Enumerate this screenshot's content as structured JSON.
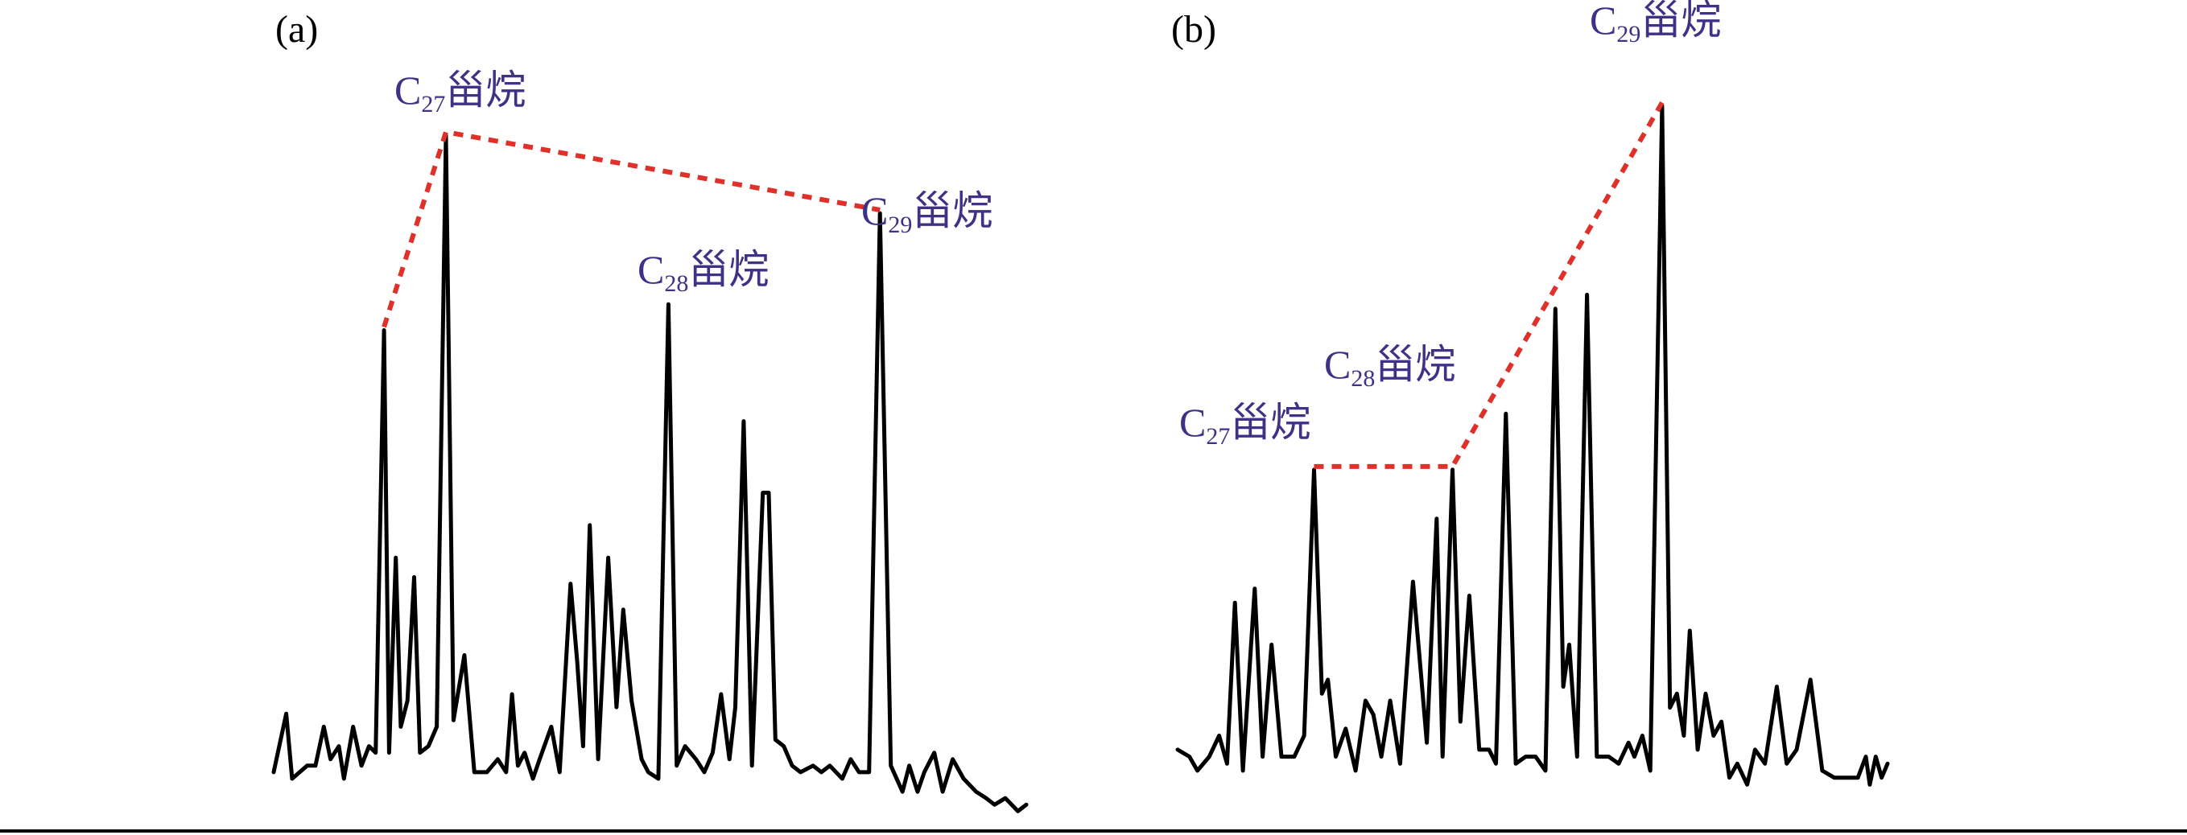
{
  "chart_data": [
    {
      "type": "line",
      "panel_label": "(a)",
      "colors": {
        "trace": "#000000",
        "trend": "#e0302a",
        "label": "#3d3285"
      },
      "peaks": [
        {
          "prefix": "C",
          "subscript": "27",
          "suffix": "甾烷",
          "relative_height": 0.995
        },
        {
          "prefix": "C",
          "subscript": "28",
          "suffix": "甾烷",
          "relative_height": 0.71
        },
        {
          "prefix": "C",
          "subscript": "29",
          "suffix": "甾烷",
          "relative_height": 0.88
        }
      ],
      "trace": [
        [
          0,
          0.01
        ],
        [
          0.015,
          0.1
        ],
        [
          0.022,
          0.0
        ],
        [
          0.04,
          0.02
        ],
        [
          0.05,
          0.02
        ],
        [
          0.06,
          0.08
        ],
        [
          0.068,
          0.03
        ],
        [
          0.078,
          0.05
        ],
        [
          0.084,
          0.0
        ],
        [
          0.095,
          0.08
        ],
        [
          0.105,
          0.02
        ],
        [
          0.114,
          0.05
        ],
        [
          0.122,
          0.04
        ],
        [
          0.132,
          0.69
        ],
        [
          0.138,
          0.04
        ],
        [
          0.146,
          0.34
        ],
        [
          0.152,
          0.08
        ],
        [
          0.16,
          0.12
        ],
        [
          0.168,
          0.31
        ],
        [
          0.175,
          0.04
        ],
        [
          0.185,
          0.05
        ],
        [
          0.195,
          0.08
        ],
        [
          0.206,
          0.99
        ],
        [
          0.215,
          0.09
        ],
        [
          0.228,
          0.19
        ],
        [
          0.24,
          0.01
        ],
        [
          0.255,
          0.01
        ],
        [
          0.268,
          0.03
        ],
        [
          0.278,
          0.01
        ],
        [
          0.285,
          0.13
        ],
        [
          0.292,
          0.02
        ],
        [
          0.3,
          0.04
        ],
        [
          0.31,
          0.0
        ],
        [
          0.318,
          0.03
        ],
        [
          0.332,
          0.08
        ],
        [
          0.342,
          0.01
        ],
        [
          0.355,
          0.3
        ],
        [
          0.363,
          0.18
        ],
        [
          0.37,
          0.05
        ],
        [
          0.378,
          0.39
        ],
        [
          0.388,
          0.03
        ],
        [
          0.4,
          0.34
        ],
        [
          0.41,
          0.11
        ],
        [
          0.418,
          0.26
        ],
        [
          0.428,
          0.12
        ],
        [
          0.44,
          0.03
        ],
        [
          0.448,
          0.01
        ],
        [
          0.46,
          0.0
        ],
        [
          0.472,
          0.73
        ],
        [
          0.482,
          0.02
        ],
        [
          0.492,
          0.05
        ],
        [
          0.505,
          0.03
        ],
        [
          0.515,
          0.01
        ],
        [
          0.525,
          0.04
        ],
        [
          0.535,
          0.13
        ],
        [
          0.545,
          0.03
        ],
        [
          0.552,
          0.11
        ],
        [
          0.562,
          0.55
        ],
        [
          0.572,
          0.02
        ],
        [
          0.585,
          0.44
        ],
        [
          0.592,
          0.44
        ],
        [
          0.6,
          0.06
        ],
        [
          0.61,
          0.05
        ],
        [
          0.62,
          0.02
        ],
        [
          0.63,
          0.01
        ],
        [
          0.645,
          0.02
        ],
        [
          0.655,
          0.01
        ],
        [
          0.665,
          0.02
        ],
        [
          0.68,
          0.0
        ],
        [
          0.69,
          0.03
        ],
        [
          0.7,
          0.01
        ],
        [
          0.712,
          0.01
        ],
        [
          0.725,
          0.87
        ],
        [
          0.738,
          0.02
        ],
        [
          0.752,
          -0.02
        ],
        [
          0.76,
          0.02
        ],
        [
          0.77,
          -0.02
        ],
        [
          0.778,
          0.01
        ],
        [
          0.79,
          0.04
        ],
        [
          0.8,
          -0.02
        ],
        [
          0.812,
          0.03
        ],
        [
          0.825,
          0.0
        ],
        [
          0.84,
          -0.02
        ],
        [
          0.852,
          -0.03
        ],
        [
          0.862,
          -0.04
        ],
        [
          0.875,
          -0.03
        ],
        [
          0.89,
          -0.05
        ],
        [
          0.9,
          -0.04
        ]
      ]
    },
    {
      "type": "line",
      "panel_label": "(b)",
      "colors": {
        "trace": "#000000",
        "trend": "#e0302a",
        "label": "#3d3285"
      },
      "peaks": [
        {
          "prefix": "C",
          "subscript": "27",
          "suffix": "甾烷",
          "relative_height": 0.43
        },
        {
          "prefix": "C",
          "subscript": "28",
          "suffix": "甾烷",
          "relative_height": 0.41
        },
        {
          "prefix": "C",
          "subscript": "29",
          "suffix": "甾烷",
          "relative_height": 1.0
        }
      ],
      "trace": [
        [
          0,
          0.03
        ],
        [
          0.012,
          0.02
        ],
        [
          0.02,
          0.0
        ],
        [
          0.032,
          0.02
        ],
        [
          0.042,
          0.05
        ],
        [
          0.05,
          0.01
        ],
        [
          0.058,
          0.24
        ],
        [
          0.066,
          0.0
        ],
        [
          0.078,
          0.26
        ],
        [
          0.086,
          0.02
        ],
        [
          0.095,
          0.18
        ],
        [
          0.105,
          0.02
        ],
        [
          0.118,
          0.02
        ],
        [
          0.128,
          0.05
        ],
        [
          0.138,
          0.43
        ],
        [
          0.146,
          0.11
        ],
        [
          0.152,
          0.13
        ],
        [
          0.16,
          0.02
        ],
        [
          0.17,
          0.06
        ],
        [
          0.18,
          0.0
        ],
        [
          0.19,
          0.1
        ],
        [
          0.198,
          0.08
        ],
        [
          0.206,
          0.02
        ],
        [
          0.215,
          0.1
        ],
        [
          0.225,
          0.01
        ],
        [
          0.238,
          0.27
        ],
        [
          0.246,
          0.14
        ],
        [
          0.252,
          0.04
        ],
        [
          0.262,
          0.36
        ],
        [
          0.268,
          0.02
        ],
        [
          0.278,
          0.43
        ],
        [
          0.286,
          0.07
        ],
        [
          0.295,
          0.25
        ],
        [
          0.305,
          0.03
        ],
        [
          0.315,
          0.03
        ],
        [
          0.322,
          0.01
        ],
        [
          0.332,
          0.51
        ],
        [
          0.342,
          0.01
        ],
        [
          0.352,
          0.02
        ],
        [
          0.362,
          0.02
        ],
        [
          0.372,
          0.0
        ],
        [
          0.382,
          0.66
        ],
        [
          0.39,
          0.12
        ],
        [
          0.396,
          0.18
        ],
        [
          0.404,
          0.02
        ],
        [
          0.414,
          0.68
        ],
        [
          0.424,
          0.02
        ],
        [
          0.436,
          0.02
        ],
        [
          0.446,
          0.01
        ],
        [
          0.456,
          0.04
        ],
        [
          0.462,
          0.02
        ],
        [
          0.47,
          0.05
        ],
        [
          0.478,
          0.0
        ],
        [
          0.49,
          0.95
        ],
        [
          0.498,
          0.09
        ],
        [
          0.505,
          0.11
        ],
        [
          0.512,
          0.05
        ],
        [
          0.518,
          0.2
        ],
        [
          0.526,
          0.03
        ],
        [
          0.534,
          0.11
        ],
        [
          0.542,
          0.05
        ],
        [
          0.55,
          0.07
        ],
        [
          0.558,
          -0.01
        ],
        [
          0.566,
          0.01
        ],
        [
          0.576,
          -0.02
        ],
        [
          0.584,
          0.03
        ],
        [
          0.594,
          0.01
        ],
        [
          0.606,
          0.12
        ],
        [
          0.616,
          0.01
        ],
        [
          0.626,
          0.03
        ],
        [
          0.64,
          0.13
        ],
        [
          0.652,
          0.0
        ],
        [
          0.664,
          -0.01
        ],
        [
          0.676,
          -0.01
        ],
        [
          0.688,
          -0.01
        ],
        [
          0.696,
          0.02
        ],
        [
          0.7,
          -0.02
        ],
        [
          0.706,
          0.02
        ],
        [
          0.712,
          -0.01
        ],
        [
          0.718,
          0.01
        ]
      ]
    }
  ]
}
